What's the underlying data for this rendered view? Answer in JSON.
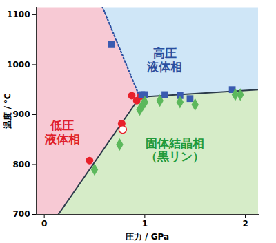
{
  "chart_data": {
    "type": "scatter",
    "xlabel": "圧力 / GPa",
    "ylabel": "温度 / ℃",
    "xlim": [
      -0.08,
      2.13
    ],
    "ylim": [
      700,
      1115
    ],
    "xticks": [
      0,
      1,
      2
    ],
    "yticks": [
      700,
      800,
      900,
      1000,
      1100
    ],
    "regions": [
      {
        "label": "低圧\n液体相",
        "color": "#f7c9d4",
        "text_color": "#e0202a",
        "polygon_x": [
          -0.08,
          0.14,
          0.95,
          0.58,
          -0.08
        ],
        "polygon_y": [
          700,
          700,
          935,
          1115,
          1115
        ],
        "label_x": 0.18,
        "label_y": 865
      },
      {
        "label": "高圧\n液体相",
        "color": "#cfe6f7",
        "text_color": "#2a4fa0",
        "polygon_x": [
          0.58,
          0.95,
          2.13,
          2.13
        ],
        "polygon_y": [
          1115,
          935,
          950,
          1115
        ],
        "label_x": 1.2,
        "label_y": 1010
      },
      {
        "label": "固体結晶相\n（黒リン）",
        "color": "#d6ecc8",
        "text_color": "#1f9a3a",
        "polygon_x": [
          0.14,
          2.13,
          2.13,
          0.95
        ],
        "polygon_y": [
          700,
          700,
          950,
          935
        ],
        "label_x": 1.3,
        "label_y": 830
      }
    ],
    "boundaries": [
      {
        "x": [
          0.14,
          0.95
        ],
        "y": [
          700,
          935
        ],
        "line_style": "solid",
        "color": "#2b3a4a"
      },
      {
        "x": [
          0.95,
          2.13
        ],
        "y": [
          935,
          950
        ],
        "line_style": "solid",
        "color": "#2b3a4a"
      },
      {
        "x": [
          0.95,
          0.58
        ],
        "y": [
          935,
          1115
        ],
        "line_style": "dotted",
        "color": "#2a4fa0"
      }
    ],
    "series": [
      {
        "marker": "circle",
        "color": "#e8202a",
        "x": [
          0.45,
          0.77,
          0.87,
          0.92,
          0.96
        ],
        "values": [
          808,
          882,
          938,
          928,
          937
        ]
      },
      {
        "marker": "open circle",
        "color": "#e8202a",
        "x": [
          0.78
        ],
        "values": [
          870
        ]
      },
      {
        "marker": "square",
        "color": "#3a5bb0",
        "x": [
          0.67,
          0.97,
          1.0,
          1.2,
          1.35,
          1.45,
          1.87
        ],
        "values": [
          1040,
          940,
          940,
          940,
          938,
          932,
          950
        ]
      },
      {
        "marker": "diamond",
        "color": "#5cb85c",
        "x": [
          0.5,
          0.75,
          0.95,
          0.98,
          1.0,
          1.15,
          1.35,
          1.5,
          1.9,
          1.95
        ],
        "values": [
          790,
          840,
          910,
          920,
          925,
          928,
          925,
          920,
          940,
          940
        ]
      }
    ]
  }
}
